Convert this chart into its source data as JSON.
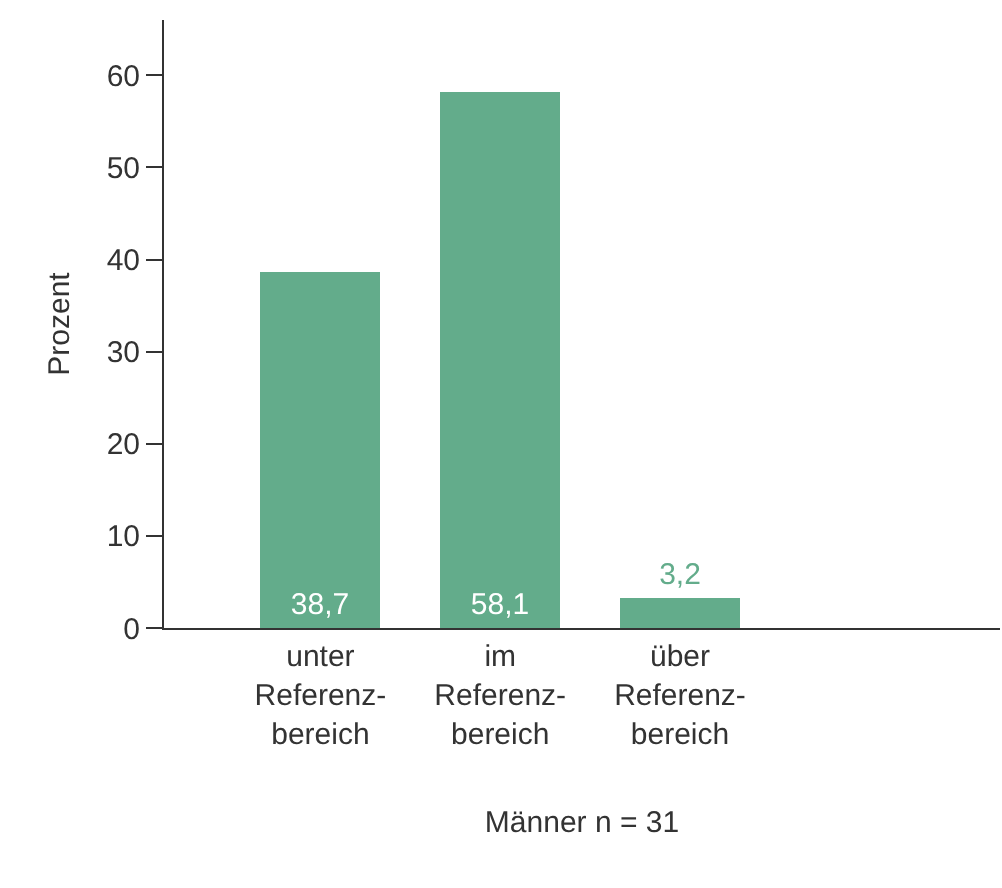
{
  "chart_data": {
    "type": "bar",
    "categories": [
      "unter\nReferenz-\nbereich",
      "im\nReferenz-\nbereich",
      "über\nReferenz-\nbereich"
    ],
    "values": [
      38.7,
      58.1,
      3.2
    ],
    "value_labels": [
      "38,7",
      "58,1",
      "3,2"
    ],
    "color": "#63ac8b",
    "ylabel": "Prozent",
    "xlabel": "Männer n = 31",
    "ylim": [
      0,
      66
    ],
    "yticks": [
      0,
      10,
      20,
      30,
      40,
      50,
      60
    ],
    "grid": false,
    "legend": false
  }
}
